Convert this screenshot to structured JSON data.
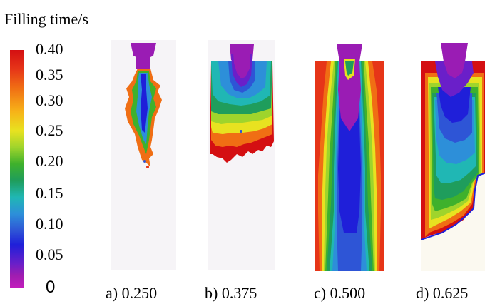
{
  "legend": {
    "title": "Filling time/s",
    "ticks": [
      "0.40",
      "0.35",
      "0.30",
      "0.25",
      "0.20",
      "0.15",
      "0.10",
      "0.05",
      "0"
    ]
  },
  "panels": [
    {
      "caption": "a) 0.250",
      "filled_fraction": 0.25
    },
    {
      "caption": "b) 0.375",
      "filled_fraction": 0.375
    },
    {
      "caption": "c) 0.500",
      "filled_fraction": 1.0
    },
    {
      "caption": "d) 0.625",
      "filled_fraction": 0.85
    }
  ],
  "colors": {
    "scale": [
      "#c21dbc",
      "#6a1fc9",
      "#1f1fd9",
      "#2e55d6",
      "#2d8fd9",
      "#20b7b4",
      "#1f9d5c",
      "#3fb12c",
      "#9fd42c",
      "#e8e220",
      "#f7b318",
      "#f06e14",
      "#e63518",
      "#d40f12"
    ],
    "background": "#f6f4f7"
  }
}
